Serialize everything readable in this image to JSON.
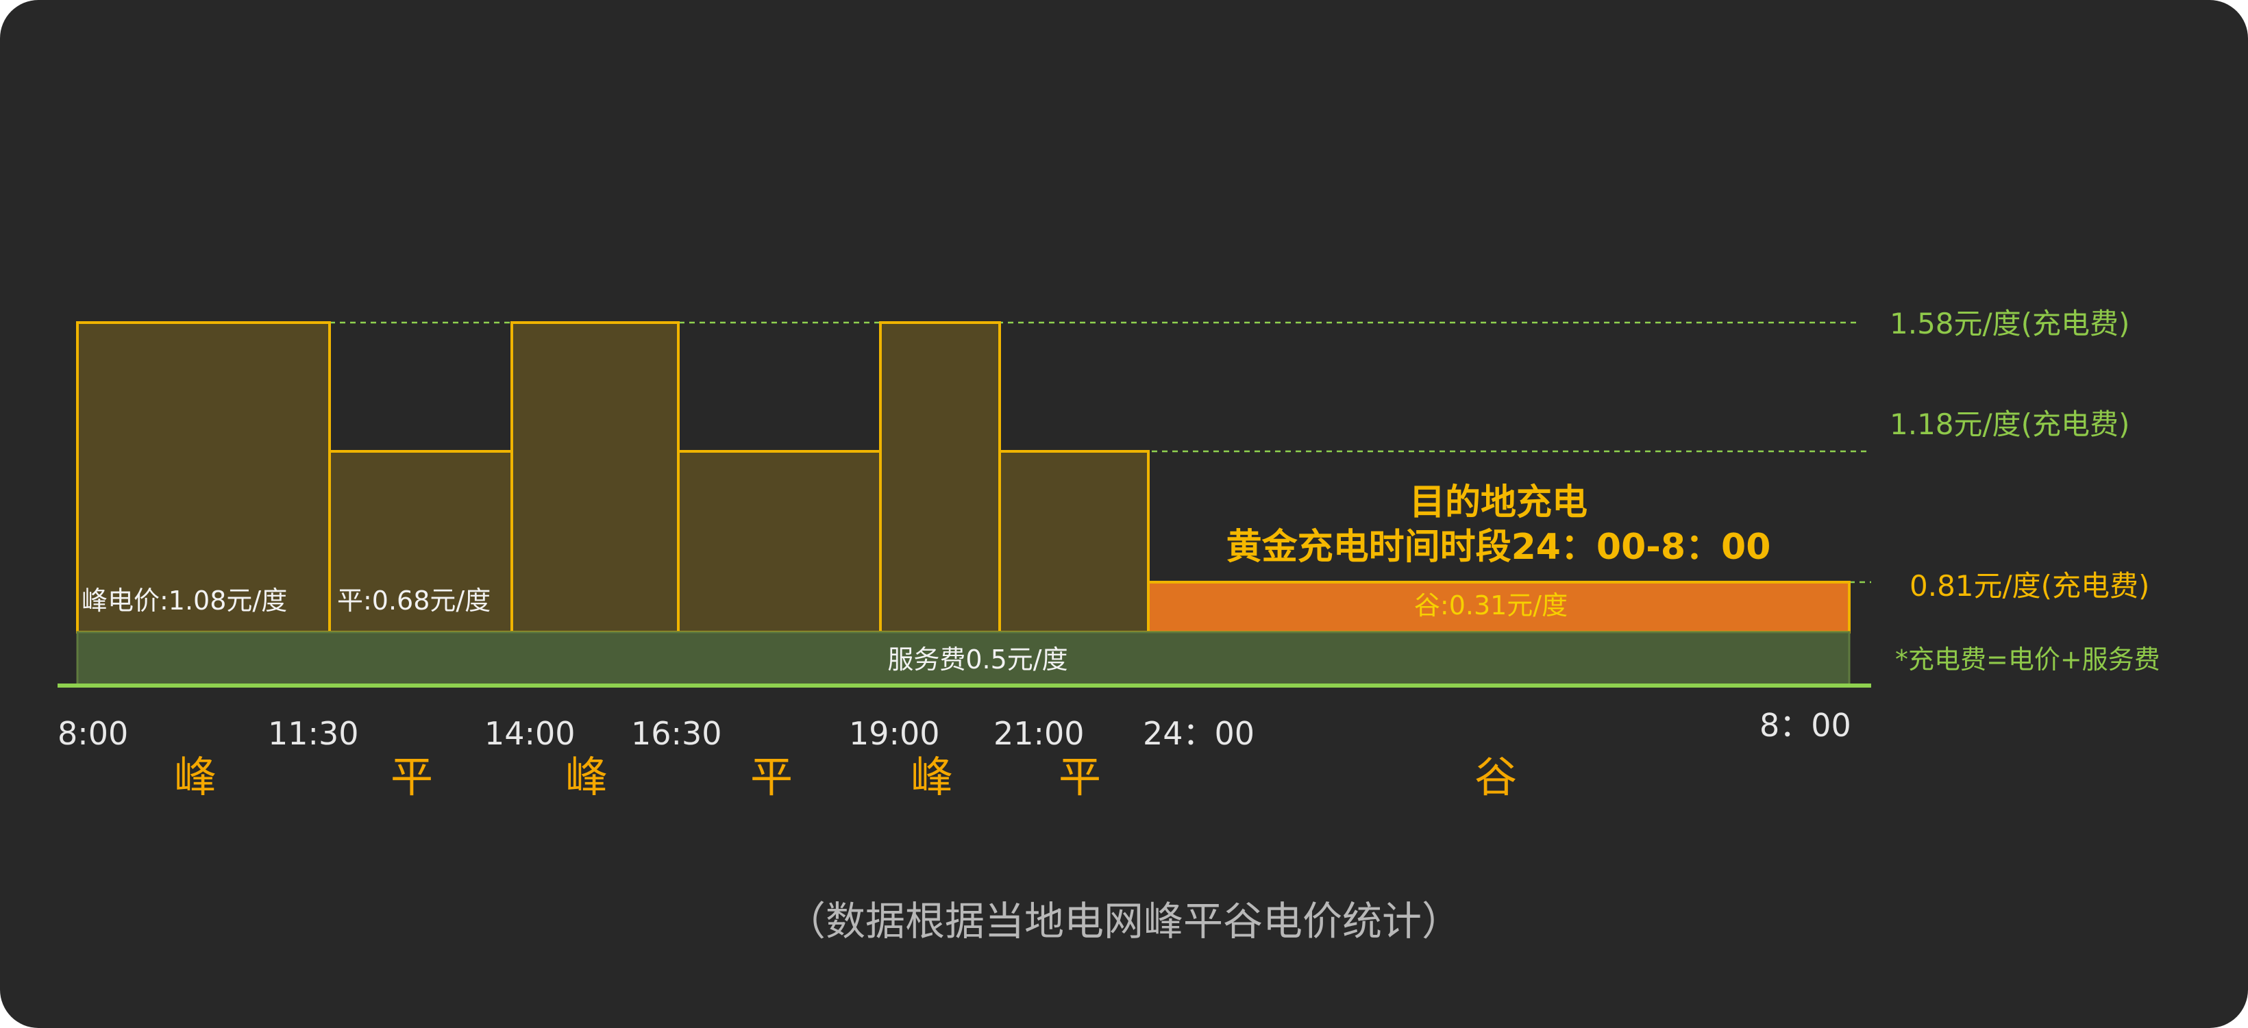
{
  "chart_data": {
    "type": "bar",
    "title": [
      "目的地充电",
      "黄金充电时间时段24：00-8：00"
    ],
    "x_tick_labels": [
      "8:00",
      "11:30",
      "14:00",
      "16:30",
      "19:00",
      "21:00",
      "24：00",
      "8：00"
    ],
    "segments": [
      {
        "start": "8:00",
        "end": "11:30",
        "period": "峰",
        "value": 1.58,
        "electricity_price": 1.08
      },
      {
        "start": "11:30",
        "end": "14:00",
        "period": "平",
        "value": 1.18,
        "electricity_price": 0.68
      },
      {
        "start": "14:00",
        "end": "16:30",
        "period": "峰",
        "value": 1.58,
        "electricity_price": 1.08
      },
      {
        "start": "16:30",
        "end": "19:00",
        "period": "平",
        "value": 1.18,
        "electricity_price": 0.68
      },
      {
        "start": "19:00",
        "end": "21:00",
        "period": "峰",
        "value": 1.58,
        "electricity_price": 1.08
      },
      {
        "start": "21:00",
        "end": "24:00",
        "period": "平",
        "value": 1.18,
        "electricity_price": 0.68
      },
      {
        "start": "24:00",
        "end": "8:00",
        "period": "谷",
        "value": 0.81,
        "electricity_price": 0.31
      }
    ],
    "service_fee": 0.5,
    "zone_labels": [
      "峰",
      "平",
      "峰",
      "平",
      "峰",
      "平",
      "谷"
    ],
    "bar_labels": {
      "peak": "峰电价:1.08元/度",
      "flat": "平:0.68元/度",
      "valley": "谷:0.31元/度",
      "service": "服务费0.5元/度"
    },
    "reference_lines": [
      {
        "value": 1.58,
        "label": "1.58元/度(充电费)"
      },
      {
        "value": 1.18,
        "label": "1.18元/度(充电费)"
      },
      {
        "value": 0.81,
        "label": "0.81元/度(充电费)"
      }
    ],
    "note": "*充电费=电价+服务费",
    "footnote": "（数据根据当地电网峰平谷电价统计）",
    "grid": false,
    "colors": {
      "peak_flat_fill": "#544823",
      "bar_stroke": "#f0b400",
      "valley_fill": "#e07320",
      "service_fill": "#4a5e38",
      "axis_line": "#8fd14f",
      "reference_line": "#8fd14f",
      "zone_label": "#f5a800",
      "title": "#f5b800"
    }
  }
}
